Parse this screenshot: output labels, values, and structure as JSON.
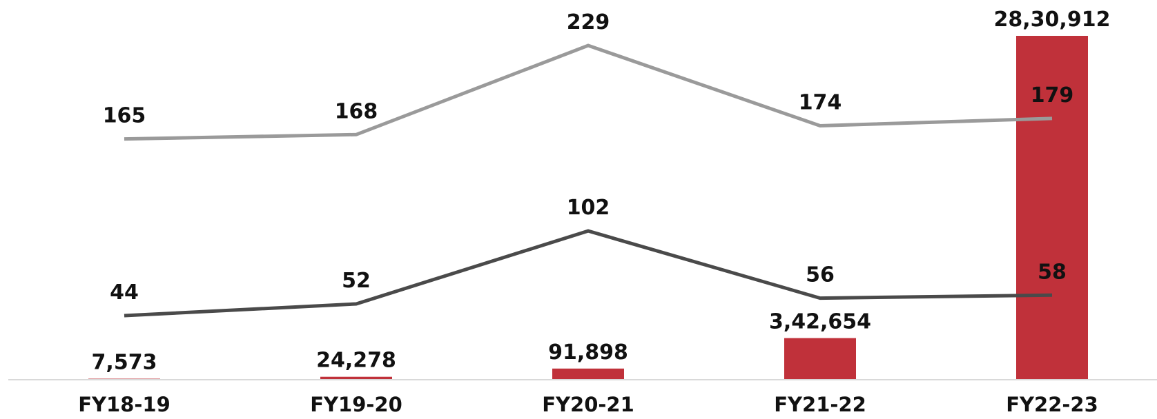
{
  "chart_data": {
    "type": "bar",
    "title": "",
    "xlabel": "",
    "ylabel": "",
    "categories": [
      "FY18-19",
      "FY19-20",
      "FY20-21",
      "FY21-22",
      "FY22-23"
    ],
    "bar_series": {
      "values": [
        7573,
        24278,
        91898,
        342654,
        2830912
      ],
      "labels": [
        "7,573",
        "24,278",
        "91,898",
        "3,42,654",
        "28,30,912"
      ],
      "color": "#c0313a"
    },
    "line_series": [
      {
        "values": [
          165,
          168,
          229,
          174,
          179
        ],
        "labels": [
          "165",
          "168",
          "229",
          "174",
          "179"
        ],
        "color": "#9a9a9a"
      },
      {
        "values": [
          44,
          52,
          102,
          56,
          58
        ],
        "labels": [
          "44",
          "52",
          "102",
          "56",
          "58"
        ],
        "color": "#4a4a4a"
      }
    ],
    "bar_ylim": [
      0,
      2830912
    ],
    "line_ylim": [
      -50,
      260
    ],
    "grid": false,
    "legend": "none",
    "baseline_color": "#d9d9d9"
  }
}
